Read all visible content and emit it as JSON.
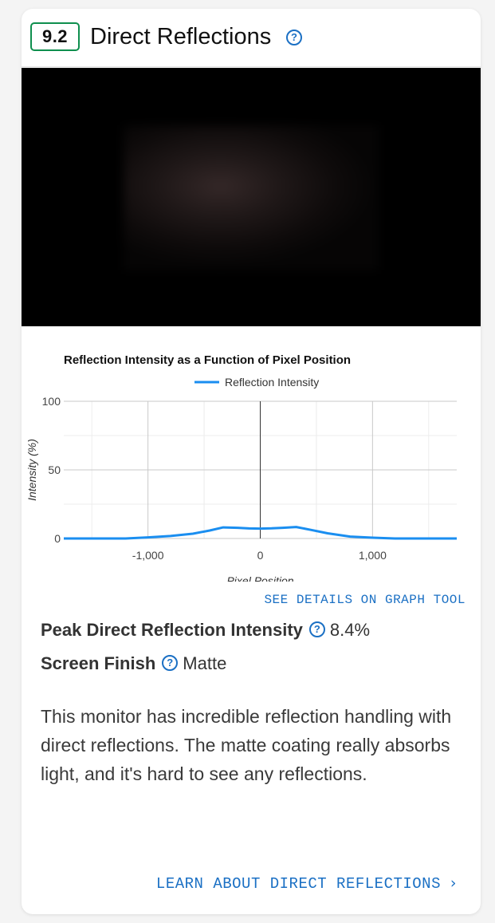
{
  "section": {
    "score": "9.2",
    "title": "Direct Reflections",
    "help_icon": "question-circle-icon"
  },
  "image": {
    "description_icon": "reflection-photo"
  },
  "chart_data": {
    "type": "line",
    "title": "Reflection Intensity as a Function of Pixel Position",
    "xlabel": "Pixel Position",
    "ylabel": "Intensity (%)",
    "xlim": [
      -1750,
      1750
    ],
    "ylim": [
      0,
      100
    ],
    "xticks": [
      -1000,
      0,
      1000
    ],
    "xtick_labels": [
      "-1,000",
      "0",
      "1,000"
    ],
    "yticks": [
      0,
      50,
      100
    ],
    "ytick_labels": [
      "0",
      "50",
      "100"
    ],
    "grid": true,
    "legend": "top-center",
    "series": [
      {
        "name": "Reflection Intensity",
        "color": "#1a8ef0",
        "x": [
          -1750,
          -1200,
          -1000,
          -800,
          -600,
          -450,
          -330,
          -200,
          -100,
          0,
          100,
          200,
          320,
          450,
          600,
          800,
          1000,
          1100,
          1200,
          1750
        ],
        "y": [
          0,
          0,
          0.8,
          1.8,
          3.5,
          5.8,
          8.1,
          7.8,
          7.3,
          7.2,
          7.4,
          7.8,
          8.4,
          6.3,
          3.8,
          1.4,
          0.6,
          0.3,
          0,
          0
        ]
      }
    ]
  },
  "links": {
    "see_details": "SEE DETAILS ON GRAPH TOOL",
    "learn_more": "LEARN ABOUT DIRECT REFLECTIONS"
  },
  "metrics": [
    {
      "label": "Peak Direct Reflection Intensity",
      "value": "8.4%"
    },
    {
      "label": "Screen Finish",
      "value": "Matte"
    }
  ],
  "description": "This monitor has incredible reflection handling with direct reflections. The matte coating really absorbs light, and it's hard to see any reflections.",
  "icons": {
    "help": "question-circle-icon",
    "chevron": "chevron-right-icon"
  }
}
